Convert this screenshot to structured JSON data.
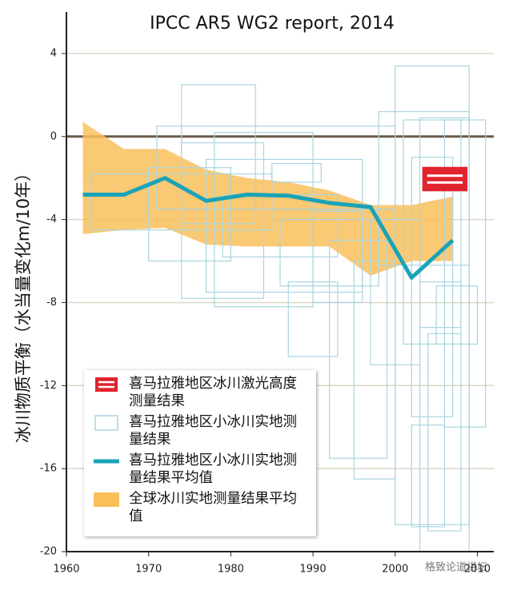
{
  "chart_data": {
    "type": "line",
    "title": "IPCC AR5 WG2 report, 2014",
    "ylabel": "冰川物质平衡（水当量变化m/10年）",
    "xlim": [
      1960,
      2012
    ],
    "ylim": [
      -20,
      6
    ],
    "xticks": [
      1960,
      1970,
      1980,
      1990,
      2000,
      2010
    ],
    "yticks": [
      -20,
      -16,
      -12,
      -8,
      -4,
      0,
      4
    ],
    "grid": true,
    "legend": "lower left",
    "series": [
      {
        "name": "喜马拉雅地区冰川激光高度测量结果",
        "color": "#e1232e",
        "boxes": [
          [
            2003.4,
            2008.7,
            -1.5,
            -2.6
          ]
        ]
      },
      {
        "name": "喜马拉雅地区小冰川实地测量结果",
        "color": "#a9d5df",
        "boxes": [
          [
            1971,
            2000,
            0.5,
            -3.5
          ],
          [
            1974,
            1983,
            2.5,
            -4.2
          ],
          [
            1974,
            1984,
            -0.3,
            -7.8
          ],
          [
            1963,
            1985,
            -1.8,
            -4.5
          ],
          [
            1978,
            1990,
            0.2,
            -8.2
          ],
          [
            1977,
            1996,
            -1.1,
            -7.5
          ],
          [
            1979,
            1993,
            -2.8,
            -5.8
          ],
          [
            1986,
            1998,
            -4.0,
            -7.2
          ],
          [
            1987,
            1993,
            -7.0,
            -10.6
          ],
          [
            1990,
            1996,
            -3.6,
            -8.0
          ],
          [
            1992,
            1999,
            -5.0,
            -15.5
          ],
          [
            1995,
            2000,
            -6.0,
            -16.5
          ],
          [
            1998,
            2009,
            1.2,
            -6.2
          ],
          [
            2000,
            2009,
            3.4,
            -18.7
          ],
          [
            2001,
            2008,
            0.8,
            -10.0
          ],
          [
            2002,
            2007,
            -1.0,
            -13.5
          ],
          [
            2003,
            2009,
            0.9,
            -20.0
          ],
          [
            2003,
            2008,
            -7.0,
            -9.2
          ],
          [
            2004,
            2008,
            -9.5,
            -19.0
          ],
          [
            1997,
            2003,
            -4.0,
            -11.0
          ],
          [
            2006,
            2011,
            0.8,
            -14.0
          ],
          [
            2005,
            2010,
            -7.2,
            -10.0
          ],
          [
            1985,
            1991,
            -1.3,
            -2.2
          ],
          [
            1970,
            1980,
            -1.5,
            -6.0
          ],
          [
            2002,
            2006,
            -13.9,
            -18.8
          ]
        ]
      },
      {
        "name": "喜马拉雅地区小冰川实地测量结果平均值",
        "color": "#1aa3b8",
        "x": [
          1962,
          1967,
          1972,
          1977,
          1982,
          1987,
          1992,
          1997,
          2002,
          2007
        ],
        "values": [
          -2.8,
          -2.8,
          -2.0,
          -3.1,
          -2.8,
          -2.85,
          -3.2,
          -3.4,
          -6.8,
          -5.0
        ]
      },
      {
        "name": "全球冰川实地测量结果平均值",
        "color": "#f9c05a",
        "x": [
          1962,
          1967,
          1972,
          1977,
          1982,
          1987,
          1992,
          1997,
          2002,
          2007
        ],
        "high": [
          0.7,
          -0.6,
          -0.6,
          -1.6,
          -2.0,
          -2.2,
          -2.6,
          -3.3,
          -3.3,
          -2.9
        ],
        "low": [
          -4.7,
          -4.5,
          -4.4,
          -5.2,
          -5.3,
          -5.3,
          -5.3,
          -6.7,
          -6.0,
          -6.0
        ]
      }
    ],
    "watermark": "格致论道讲坛"
  }
}
